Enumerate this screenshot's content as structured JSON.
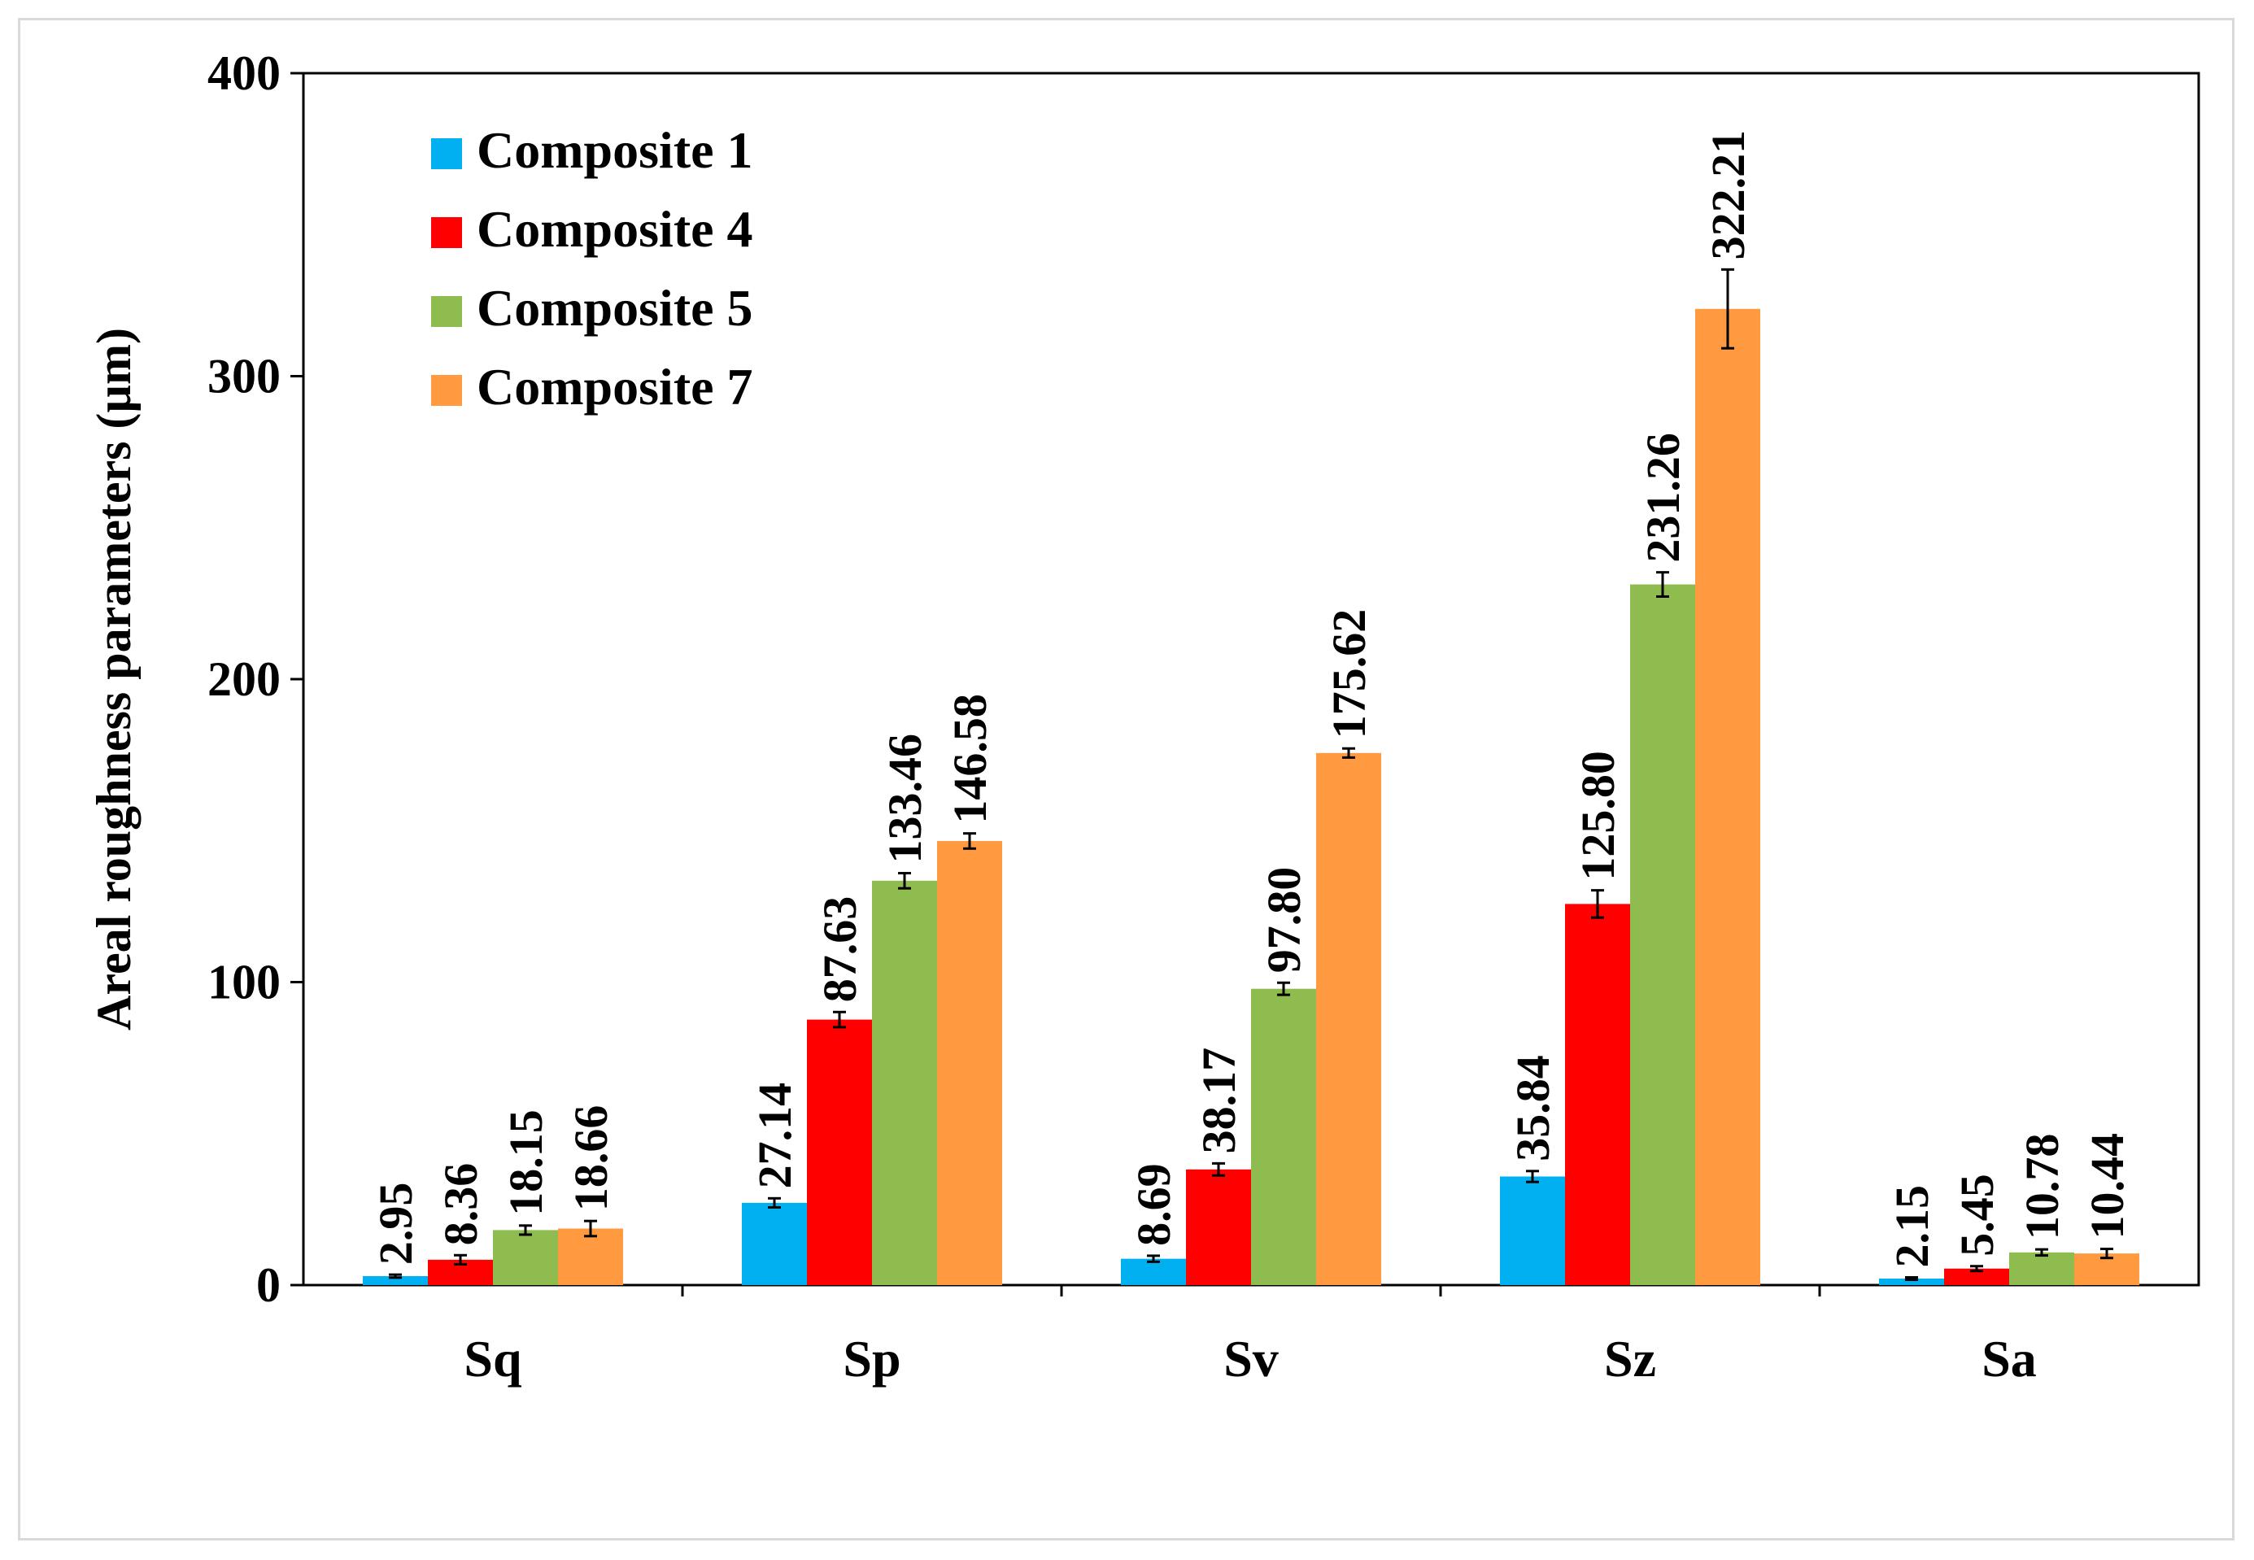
{
  "chart_data": {
    "type": "bar",
    "title": "",
    "xlabel": "",
    "ylabel": "Areal roughness parameters (µm)",
    "ylim": [
      0,
      400
    ],
    "yticks": [
      0,
      100,
      200,
      300,
      400
    ],
    "grid": false,
    "legend_position": "top-left",
    "categories": [
      "Sq",
      "Sp",
      "Sv",
      "Sz",
      "Sa"
    ],
    "series": [
      {
        "name": "Composite 1",
        "color": "#00b0f0",
        "values": [
          2.95,
          27.14,
          8.69,
          35.84,
          2.15
        ],
        "labels": [
          "2.95",
          "27.14",
          "8.69",
          "35.84",
          "2.15"
        ],
        "errors": [
          0.5,
          1.5,
          1.0,
          1.8,
          0.4
        ]
      },
      {
        "name": "Composite 4",
        "color": "#ff0000",
        "values": [
          8.36,
          87.63,
          38.17,
          125.8,
          5.45
        ],
        "labels": [
          "8.36",
          "87.63",
          "38.17",
          "125.80",
          "5.45"
        ],
        "errors": [
          1.5,
          2.5,
          2.0,
          4.5,
          0.8
        ]
      },
      {
        "name": "Composite 5",
        "color": "#8fbc4f",
        "values": [
          18.15,
          133.46,
          97.8,
          231.26,
          10.78
        ],
        "labels": [
          "18.15",
          "133.46",
          "97.80",
          "231.26",
          "10.78"
        ],
        "errors": [
          1.5,
          2.5,
          2.0,
          4.0,
          1.0
        ]
      },
      {
        "name": "Composite 7",
        "color": "#ff9a40",
        "values": [
          18.66,
          146.58,
          175.62,
          322.21,
          10.44
        ],
        "labels": [
          "18.66",
          "146.58",
          "175.62",
          "322.21",
          "10.44"
        ],
        "errors": [
          2.5,
          2.5,
          1.5,
          13.0,
          1.5
        ]
      }
    ]
  }
}
